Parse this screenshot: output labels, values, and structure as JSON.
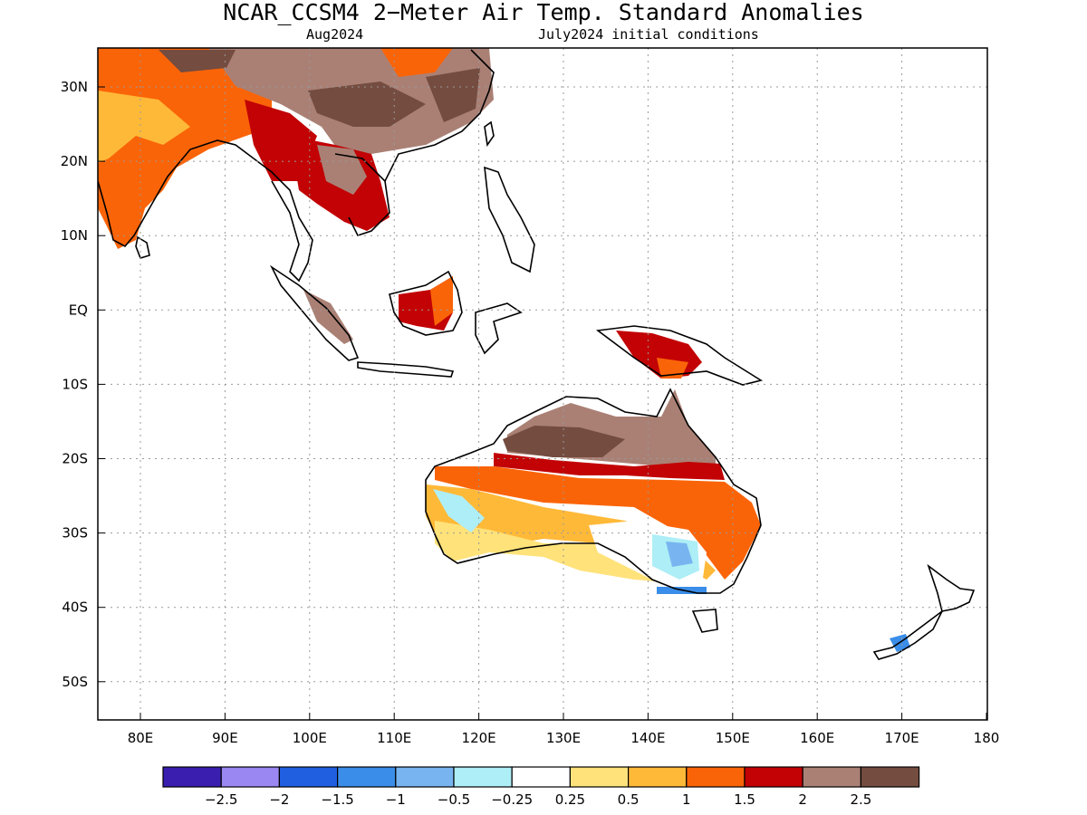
{
  "title": "NCAR_CCSM4 2−Meter Air Temp. Standard Anomalies",
  "valid_month": "Aug2024",
  "init_conditions": "July2024 initial conditions",
  "lat_labels": [
    "30N",
    "20N",
    "10N",
    "EQ",
    "10S",
    "20S",
    "30S",
    "40S",
    "50S"
  ],
  "lon_labels": [
    "80E",
    "90E",
    "100E",
    "110E",
    "120E",
    "130E",
    "140E",
    "150E",
    "160E",
    "170E",
    "180"
  ],
  "colorbar": {
    "colors": [
      "#3a1eb0",
      "#9a87f2",
      "#1f5fe0",
      "#3a8de8",
      "#78b5f0",
      "#aeeef6",
      "#ffffff",
      "#ffe27a",
      "#ffb938",
      "#fa6408",
      "#c20204",
      "#aa8075",
      "#744c40"
    ],
    "tick_labels": [
      "−2.5",
      "−2",
      "−1.5",
      "−1",
      "−0.5",
      "−0.25",
      "0.25",
      "0.5",
      "1",
      "1.5",
      "2",
      "2.5"
    ]
  }
}
